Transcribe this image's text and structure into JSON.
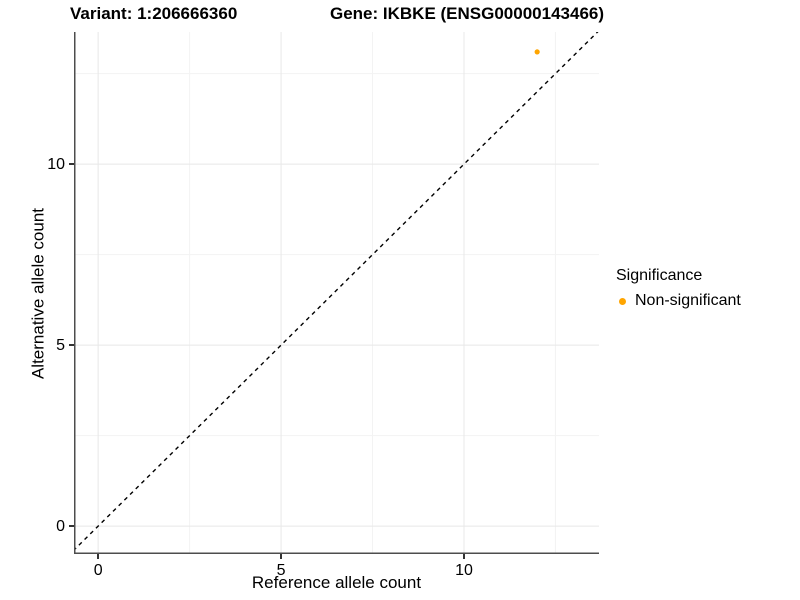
{
  "titles": {
    "variant": "Variant: 1:206666360",
    "gene": "Gene: IKBKE (ENSG00000143466)"
  },
  "axes": {
    "x": {
      "label": "Reference allele count"
    },
    "y": {
      "label": "Alternative allele count"
    }
  },
  "legend": {
    "title": "Significance",
    "items": [
      {
        "label": "Non-significant",
        "color": "#FFA500",
        "marker": "dot-icon"
      }
    ]
  },
  "chart_data": {
    "type": "scatter",
    "title": "Variant: 1:206666360   Gene: IKBKE (ENSG00000143466)",
    "xlabel": "Reference allele count",
    "ylabel": "Alternative allele count",
    "xlim": [
      -0.66,
      13.69
    ],
    "ylim": [
      -0.77,
      13.65
    ],
    "x_ticks": [
      0,
      5,
      10
    ],
    "y_ticks": [
      0,
      5,
      10
    ],
    "x_minor": [
      2.5,
      7.5,
      12.5
    ],
    "y_minor": [
      2.5,
      7.5,
      12.5
    ],
    "grid": true,
    "series": [
      {
        "name": "Non-significant",
        "color": "#FFA500",
        "points": [
          {
            "x": 12,
            "y": 13.1
          }
        ]
      }
    ],
    "reference_line": {
      "kind": "identity y=x",
      "style": "dashed",
      "color": "#000000"
    },
    "legend": {
      "title": "Significance",
      "position": "right",
      "entries": [
        "Non-significant"
      ]
    },
    "colors": {
      "grid_major": "#E8E8E8",
      "grid_minor": "#F3F3F3",
      "axis_line": "#4D4D4D",
      "tick": "#333333",
      "point": "#FFA500"
    }
  }
}
